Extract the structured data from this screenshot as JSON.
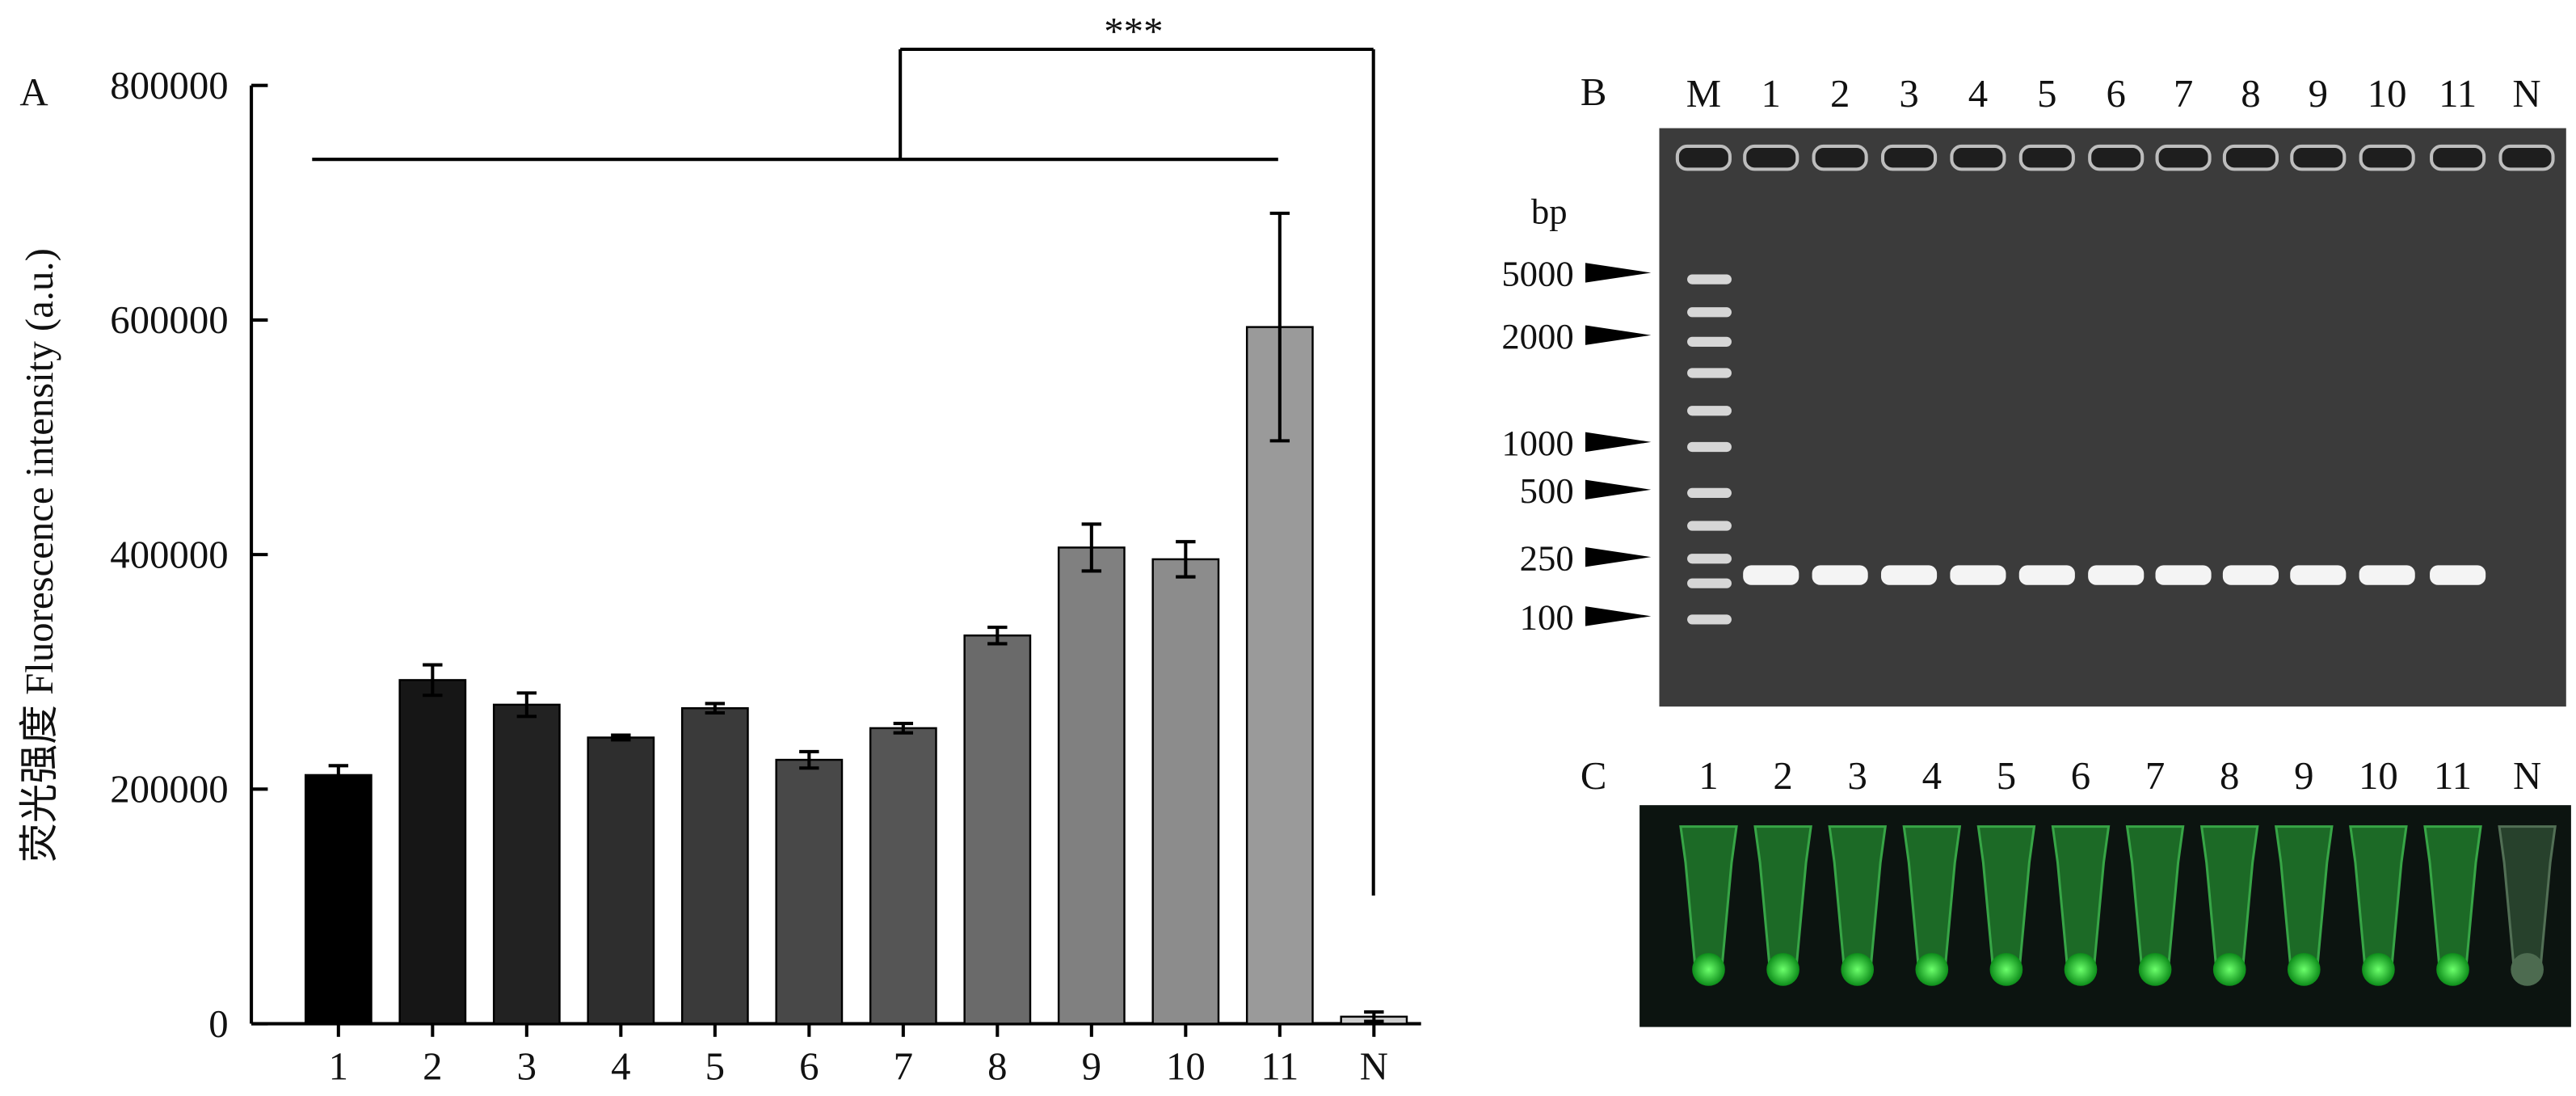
{
  "chart_data": {
    "type": "bar",
    "panel": "A",
    "y_label": "荧光强度 Fluorescence intensity (a.u.)",
    "categories": [
      "1",
      "2",
      "3",
      "4",
      "5",
      "6",
      "7",
      "8",
      "9",
      "10",
      "11",
      "N"
    ],
    "values": [
      212000,
      293000,
      272000,
      244000,
      269000,
      225000,
      252000,
      331000,
      406000,
      396000,
      594000,
      6000
    ],
    "errors": [
      8000,
      13000,
      10000,
      2000,
      4000,
      7000,
      4000,
      7000,
      20000,
      15000,
      97000,
      4000
    ],
    "colors": [
      "#000000",
      "#161616",
      "#222222",
      "#2e2e2e",
      "#3a3a3a",
      "#484848",
      "#555555",
      "#6a6a6a",
      "#808080",
      "#8c8c8c",
      "#9a9a9a",
      "#cdcdcd"
    ],
    "ylim": [
      0,
      800000
    ],
    "yticks": [
      0,
      200000,
      400000,
      600000,
      800000
    ],
    "annotation": "***"
  },
  "gel": {
    "panel": "B",
    "lanes": [
      "M",
      "1",
      "2",
      "3",
      "4",
      "5",
      "6",
      "7",
      "8",
      "9",
      "10",
      "11",
      "N"
    ],
    "unit": "bp",
    "marker_sizes": [
      "5000",
      "2000",
      "1000",
      "500",
      "250",
      "100"
    ]
  },
  "tubes": {
    "panel": "C",
    "lanes": [
      "1",
      "2",
      "3",
      "4",
      "5",
      "6",
      "7",
      "8",
      "9",
      "10",
      "11",
      "N"
    ]
  }
}
